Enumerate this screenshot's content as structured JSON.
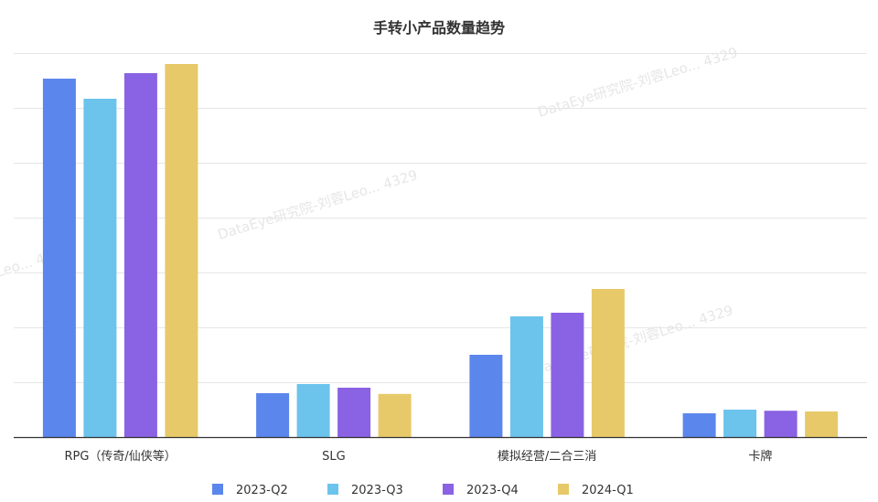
{
  "chart_data": {
    "type": "bar",
    "title": "手转小产品数量趋势",
    "categories": [
      "RPG（传奇/仙侠等）",
      "SLG",
      "模拟经营/二合三消",
      "卡牌"
    ],
    "series": [
      {
        "name": "2023-Q2",
        "color": "#5b86ec",
        "values": [
          98,
          12,
          22.5,
          6.5
        ]
      },
      {
        "name": "2023-Q3",
        "color": "#6cc3ec",
        "values": [
          92.5,
          14.5,
          33,
          7.5
        ]
      },
      {
        "name": "2023-Q4",
        "color": "#8a62e4",
        "values": [
          99.5,
          13.5,
          34,
          7.2
        ]
      },
      {
        "name": "2024-Q1",
        "color": "#e8c96a",
        "values": [
          102,
          11.8,
          40.5,
          7
        ]
      }
    ],
    "ylim": [
      0,
      105
    ],
    "grid": true,
    "legend_position": "bottom"
  },
  "watermarks": [
    "DataEye研究院-刘蓉Leo... 4329",
    "DataEye研究院-刘蓉Leo... 4329",
    "DataEye研究院-刘蓉Leo... 4329",
    "DataEye研究院-刘蓉Leo... 4329"
  ]
}
